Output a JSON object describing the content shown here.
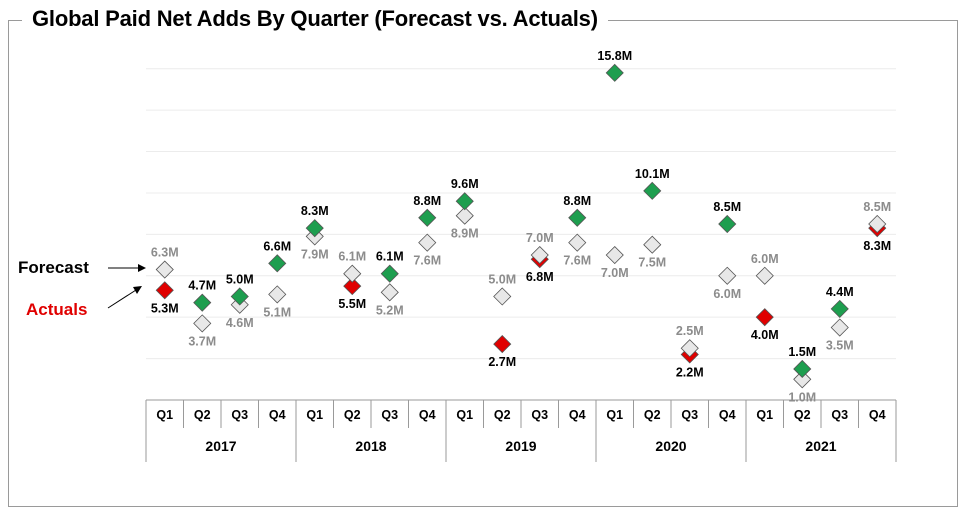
{
  "title": "Global Paid Net Adds By Quarter (Forecast vs. Actuals)",
  "chart_data": {
    "type": "scatter",
    "title": "Global Paid Net Adds By Quarter (Forecast vs. Actuals)",
    "quarters": [
      "Q1",
      "Q2",
      "Q3",
      "Q4",
      "Q1",
      "Q2",
      "Q3",
      "Q4",
      "Q1",
      "Q2",
      "Q3",
      "Q4",
      "Q1",
      "Q2",
      "Q3",
      "Q4",
      "Q1",
      "Q2",
      "Q3",
      "Q4"
    ],
    "years": [
      "2017",
      "2018",
      "2019",
      "2020",
      "2021"
    ],
    "legend": {
      "forecast": "Forecast",
      "actuals": "Actuals"
    },
    "ylim": [
      0,
      17
    ],
    "grid": true,
    "series": [
      {
        "name": "Forecast",
        "values": [
          6.3,
          3.7,
          4.6,
          5.1,
          7.9,
          6.1,
          5.2,
          7.6,
          8.9,
          5.0,
          7.0,
          7.6,
          7.0,
          7.5,
          2.5,
          6.0,
          6.0,
          1.0,
          3.5,
          8.5
        ],
        "labels": [
          "6.3M",
          "3.7M",
          "4.6M",
          "5.1M",
          "7.9M",
          "6.1M",
          "5.2M",
          "7.6M",
          "8.9M",
          "5.0M",
          "7.0M",
          "7.6M",
          "7.0M",
          "7.5M",
          "2.5M",
          "6.0M",
          "6.0M",
          "1.0M",
          "3.5M",
          "8.5M"
        ]
      },
      {
        "name": "Actuals",
        "values": [
          5.3,
          4.7,
          5.0,
          6.6,
          8.3,
          5.5,
          6.1,
          8.8,
          9.6,
          2.7,
          6.8,
          8.8,
          15.8,
          10.1,
          2.2,
          8.5,
          4.0,
          1.5,
          4.4,
          8.3
        ],
        "labels": [
          "5.3M",
          "4.7M",
          "5.0M",
          "6.6M",
          "8.3M",
          "5.5M",
          "6.1M",
          "8.8M",
          "9.6M",
          "2.7M",
          "6.8M",
          "8.8M",
          "15.8M",
          "10.1M",
          "2.2M",
          "8.5M",
          "4.0M",
          "1.5M",
          "4.4M",
          "8.3M"
        ],
        "beat_color": "#1e9e4f",
        "miss_color": "#e00000"
      }
    ],
    "forecast_color": "#e8e8e8"
  }
}
